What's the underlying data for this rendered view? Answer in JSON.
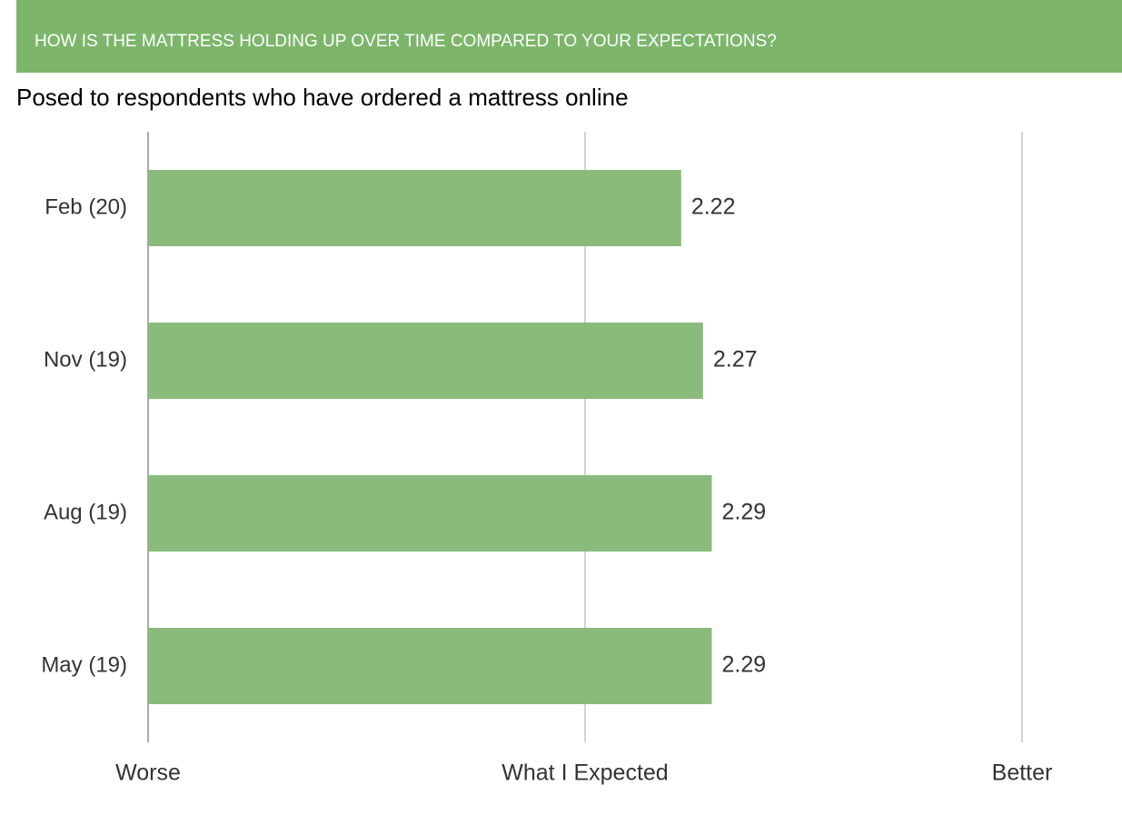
{
  "chart_data": {
    "type": "hbar",
    "title": "HOW IS THE MATTRESS HOLDING UP OVER TIME COMPARED TO YOUR EXPECTATIONS?",
    "subtitle": "Posed to respondents who have ordered a mattress online",
    "categories": [
      "Feb (20)",
      "Nov (19)",
      "Aug (19)",
      "May (19)"
    ],
    "values": [
      2.22,
      2.27,
      2.29,
      2.29
    ],
    "color": "#86b978",
    "xlim": [
      1,
      3
    ],
    "xticks": [
      {
        "value": 1,
        "label": "Worse"
      },
      {
        "value": 2,
        "label": "What I Expected"
      },
      {
        "value": 3,
        "label": "Better"
      }
    ],
    "grid": true
  }
}
